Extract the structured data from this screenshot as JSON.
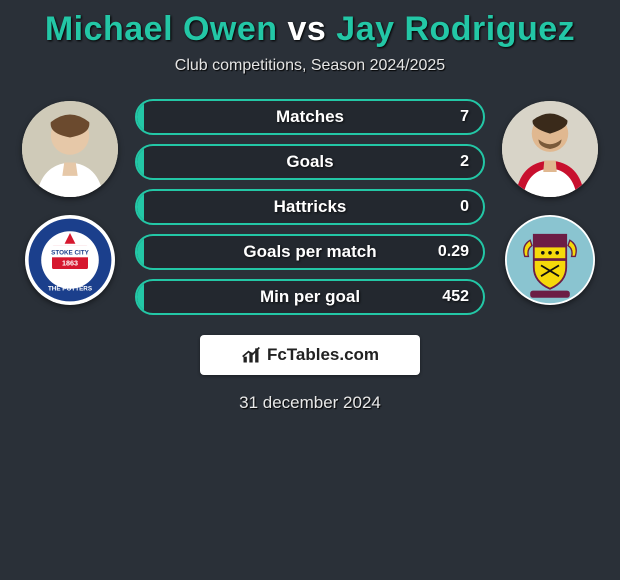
{
  "accent_color": "#23c7a6",
  "background_color": "#2a3038",
  "title": {
    "player1": "Michael Owen",
    "vs": "vs",
    "player2": "Jay Rodriguez"
  },
  "subtitle": "Club competitions, Season 2024/2025",
  "stats": [
    {
      "label": "Matches",
      "value": "7",
      "fill_pct": 2
    },
    {
      "label": "Goals",
      "value": "2",
      "fill_pct": 2
    },
    {
      "label": "Hattricks",
      "value": "0",
      "fill_pct": 2
    },
    {
      "label": "Goals per match",
      "value": "0.29",
      "fill_pct": 2
    },
    {
      "label": "Min per goal",
      "value": "452",
      "fill_pct": 2
    }
  ],
  "brand": "FcTables.com",
  "date": "31 december 2024",
  "left": {
    "player_name": "Michael Owen",
    "club": "Stoke City",
    "club_colors": {
      "primary": "#d6172e",
      "secondary": "#1b3f8c",
      "text": "#ffffff"
    },
    "badge_text_top": "STOKE CITY",
    "badge_year": "1863",
    "badge_text_bottom": "THE POTTERS"
  },
  "right": {
    "player_name": "Jay Rodriguez",
    "club": "Burnley",
    "club_colors": {
      "primary": "#6c1d45",
      "secondary": "#f5d90a",
      "accent": "#8ac4d0"
    }
  }
}
